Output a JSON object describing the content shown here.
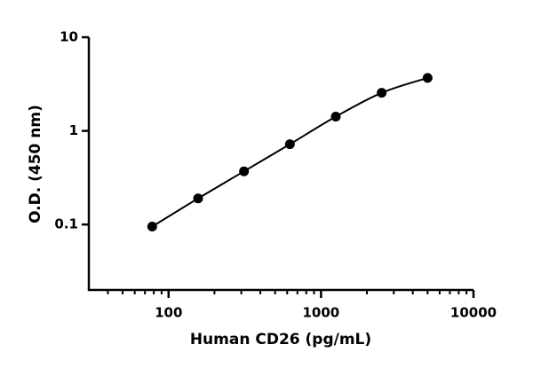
{
  "chart_data": {
    "type": "scatter",
    "x_label": "Human CD26 (pg/mL)",
    "y_label": "O.D. (450 nm)",
    "log_x": true,
    "log_y": true,
    "xlim": [
      30,
      10000
    ],
    "ylim": [
      0.02,
      10
    ],
    "xticks": [
      100,
      1000,
      10000
    ],
    "xminorticks": [
      40,
      50,
      60,
      70,
      80,
      90,
      200,
      300,
      400,
      500,
      600,
      700,
      800,
      900,
      2000,
      3000,
      4000,
      5000,
      6000,
      7000,
      8000,
      9000
    ],
    "yticks": [
      0.1,
      1,
      10
    ],
    "series": [
      {
        "color": "#000000",
        "x": [
          78.1,
          156.3,
          312.5,
          625,
          1250,
          2500,
          5000
        ],
        "values": [
          0.095,
          0.19,
          0.37,
          0.72,
          1.42,
          2.55,
          3.68
        ]
      }
    ]
  }
}
